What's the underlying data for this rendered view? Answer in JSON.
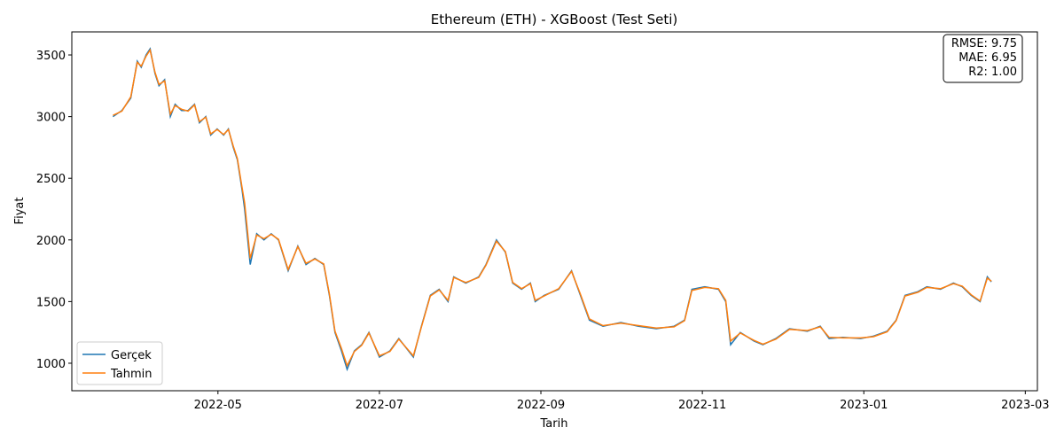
{
  "chart_data": {
    "type": "line",
    "title": "Ethereum (ETH) - XGBoost (Test Seti)",
    "xlabel": "Tarih",
    "ylabel": "Fiyat",
    "x": [
      2.7,
      2.81,
      2.92,
      3.0,
      3.05,
      3.11,
      3.16,
      3.22,
      3.27,
      3.34,
      3.41,
      3.47,
      3.55,
      3.63,
      3.71,
      3.77,
      3.85,
      3.91,
      3.99,
      4.07,
      4.13,
      4.19,
      4.24,
      4.3,
      4.33,
      4.4,
      4.48,
      4.57,
      4.66,
      4.75,
      4.87,
      4.99,
      5.09,
      5.2,
      5.31,
      5.38,
      5.45,
      5.53,
      5.6,
      5.69,
      5.78,
      5.87,
      6.0,
      6.13,
      6.24,
      6.42,
      6.52,
      6.63,
      6.74,
      6.85,
      6.92,
      7.07,
      7.23,
      7.32,
      7.45,
      7.56,
      7.65,
      7.76,
      7.87,
      7.93,
      8.04,
      8.22,
      8.38,
      8.49,
      8.6,
      8.77,
      8.99,
      9.21,
      9.43,
      9.65,
      9.78,
      9.87,
      10.03,
      10.2,
      10.29,
      10.35,
      10.47,
      10.64,
      10.75,
      10.91,
      11.08,
      11.3,
      11.46,
      11.57,
      11.74,
      11.96,
      12.12,
      12.29,
      12.4,
      12.51,
      12.67,
      12.78,
      12.95,
      13.11,
      13.22,
      13.33,
      13.44,
      13.53,
      13.58
    ],
    "series": [
      {
        "name": "Gerçek",
        "color": "#1f77b4",
        "values": [
          3000,
          3050,
          3150,
          3450,
          3400,
          3500,
          3550,
          3350,
          3250,
          3300,
          3000,
          3100,
          3050,
          3050,
          3100,
          2950,
          3000,
          2850,
          2900,
          2850,
          2900,
          2750,
          2650,
          2400,
          2250,
          1800,
          2050,
          2000,
          2050,
          2000,
          1750,
          1950,
          1800,
          1850,
          1800,
          1550,
          1250,
          1100,
          950,
          1100,
          1150,
          1250,
          1050,
          1100,
          1200,
          1050,
          1300,
          1550,
          1600,
          1500,
          1700,
          1650,
          1700,
          1800,
          2000,
          1900,
          1650,
          1600,
          1650,
          1500,
          1550,
          1600,
          1750,
          1550,
          1350,
          1300,
          1330,
          1300,
          1280,
          1300,
          1350,
          1600,
          1620,
          1600,
          1500,
          1150,
          1250,
          1180,
          1150,
          1200,
          1280,
          1260,
          1300,
          1200,
          1210,
          1200,
          1220,
          1260,
          1350,
          1550,
          1580,
          1620,
          1600,
          1650,
          1620,
          1550,
          1500,
          1700,
          1660
        ]
      },
      {
        "name": "Tahmin",
        "color": "#ff7f0e",
        "values": [
          3010,
          3045,
          3160,
          3440,
          3410,
          3490,
          3540,
          3360,
          3260,
          3290,
          3020,
          3090,
          3060,
          3045,
          3095,
          2960,
          2995,
          2860,
          2895,
          2855,
          2895,
          2760,
          2660,
          2420,
          2300,
          1850,
          2040,
          2010,
          2045,
          2005,
          1760,
          1945,
          1810,
          1845,
          1805,
          1560,
          1260,
          1120,
          980,
          1095,
          1145,
          1245,
          1060,
          1095,
          1195,
          1060,
          1295,
          1545,
          1595,
          1510,
          1695,
          1655,
          1695,
          1795,
          1990,
          1905,
          1655,
          1605,
          1645,
          1510,
          1545,
          1605,
          1745,
          1560,
          1360,
          1305,
          1325,
          1305,
          1285,
          1295,
          1345,
          1590,
          1615,
          1605,
          1510,
          1180,
          1245,
          1185,
          1155,
          1195,
          1275,
          1265,
          1295,
          1210,
          1205,
          1205,
          1215,
          1255,
          1345,
          1545,
          1575,
          1615,
          1605,
          1645,
          1625,
          1555,
          1505,
          1690,
          1665
        ]
      }
    ],
    "xlim": [
      2.19,
      14.15
    ],
    "ylim": [
      777,
      3687
    ],
    "xticks": [
      {
        "value": 4,
        "label": "2022-05"
      },
      {
        "value": 6,
        "label": "2022-07"
      },
      {
        "value": 8,
        "label": "2022-09"
      },
      {
        "value": 10,
        "label": "2022-11"
      },
      {
        "value": 12,
        "label": "2023-01"
      },
      {
        "value": 14,
        "label": "2023-03"
      }
    ],
    "yticks": [
      1000,
      1500,
      2000,
      2500,
      3000,
      3500
    ],
    "legend": "lower left",
    "annotation": [
      "RMSE: 9.75",
      "MAE: 6.95",
      "R2: 1.00"
    ]
  }
}
